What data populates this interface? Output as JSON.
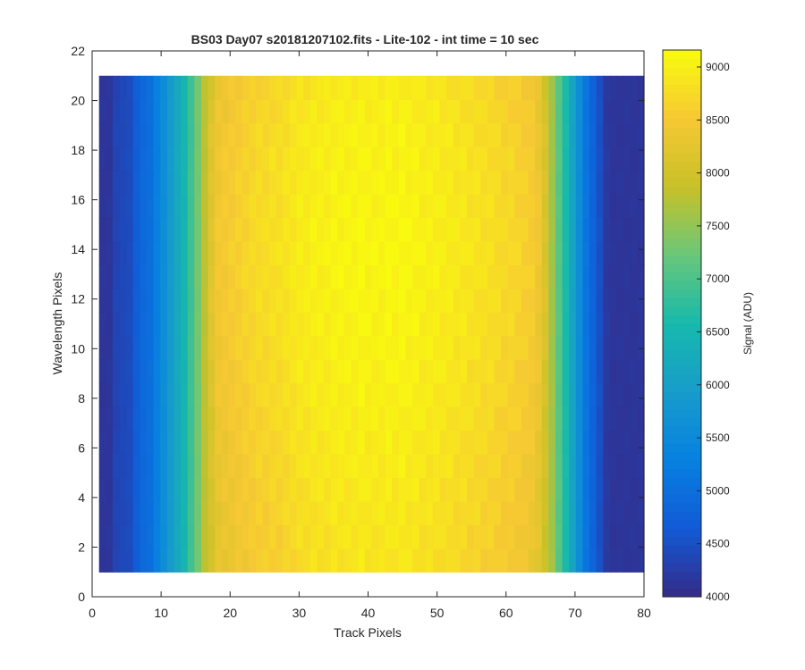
{
  "chart_data": {
    "type": "heatmap",
    "title": "BS03 Day07  s20181207102.fits - Lite-102 - int time = 10 sec",
    "xlabel": "Track Pixels",
    "ylabel": "Wavelength Pixels",
    "xlim": [
      0,
      80
    ],
    "ylim": [
      0,
      22
    ],
    "xticks": [
      "0",
      "10",
      "20",
      "30",
      "40",
      "50",
      "60",
      "70",
      "80"
    ],
    "yticks": [
      "0",
      "2",
      "4",
      "6",
      "8",
      "10",
      "12",
      "14",
      "16",
      "18",
      "20",
      "22"
    ],
    "x": [
      1,
      80
    ],
    "y": [
      1,
      21
    ],
    "colorbar": {
      "label": "Signal (ADU)",
      "ticks": [
        "4000",
        "4500",
        "5000",
        "5500",
        "6000",
        "6500",
        "7000",
        "7500",
        "8000",
        "8500",
        "9000"
      ],
      "range": [
        4000,
        9160
      ],
      "colormap": "parula"
    },
    "column_profile": [
      4150,
      4150,
      4350,
      4400,
      4450,
      4700,
      4900,
      5000,
      5300,
      5600,
      5900,
      6200,
      6500,
      6900,
      7300,
      7800,
      8200,
      8450,
      8500,
      8550,
      8600,
      8650,
      8700,
      8750,
      8750,
      8800,
      8800,
      8850,
      8900,
      8950,
      8950,
      9000,
      9000,
      9000,
      9050,
      9050,
      9050,
      9050,
      9100,
      9050,
      9050,
      9050,
      9100,
      9050,
      9100,
      9050,
      9050,
      9000,
      9000,
      9000,
      8950,
      8950,
      8900,
      8900,
      8850,
      8850,
      8800,
      8800,
      8750,
      8700,
      8700,
      8650,
      8600,
      8550,
      8400,
      8100,
      7600,
      7100,
      6600,
      6100,
      5600,
      5100,
      4800,
      4500,
      4200,
      4150,
      4150,
      4150,
      4150,
      4150
    ],
    "row_profile": [
      -300,
      -280,
      -250,
      -220,
      -180,
      -150,
      -120,
      -80,
      -50,
      -20,
      0,
      20,
      40,
      50,
      40,
      20,
      0,
      -20,
      -50,
      -100,
      -150
    ]
  }
}
